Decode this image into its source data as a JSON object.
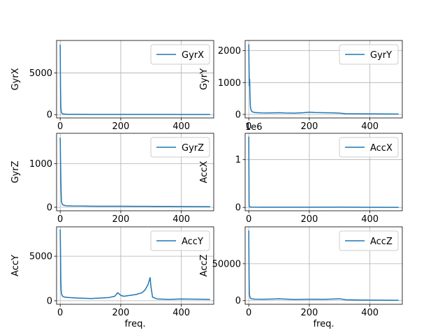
{
  "chart_data": [
    {
      "type": "line",
      "ylabel": "GyrX",
      "xlabel": "",
      "xlim": [
        -12,
        507
      ],
      "ylim": [
        -400,
        8900
      ],
      "xticks": [
        "0",
        "200",
        "400"
      ],
      "xtick_values": [
        0,
        200,
        400
      ],
      "yticks": [
        "0",
        "5000"
      ],
      "ytick_values": [
        0,
        5000
      ],
      "offset_text": "",
      "legend": "upper-right",
      "grid": true,
      "color": "#1f77b4",
      "series": [
        {
          "name": "GyrX",
          "points": [
            [
              0,
              8400
            ],
            [
              1,
              3200
            ],
            [
              2,
              1000
            ],
            [
              3,
              500
            ],
            [
              4,
              250
            ],
            [
              6,
              150
            ],
            [
              10,
              80
            ],
            [
              20,
              50
            ],
            [
              40,
              40
            ],
            [
              80,
              35
            ],
            [
              120,
              30
            ],
            [
              160,
              28
            ],
            [
              200,
              30
            ],
            [
              240,
              28
            ],
            [
              280,
              30
            ],
            [
              320,
              26
            ],
            [
              360,
              25
            ],
            [
              400,
              22
            ],
            [
              440,
              20
            ],
            [
              470,
              20
            ],
            [
              495,
              18
            ]
          ]
        }
      ]
    },
    {
      "type": "line",
      "ylabel": "GyrY",
      "xlabel": "",
      "xlim": [
        -12,
        507
      ],
      "ylim": [
        -110,
        2320
      ],
      "xticks": [
        "0",
        "200",
        "400"
      ],
      "xtick_values": [
        0,
        200,
        400
      ],
      "yticks": [
        "0",
        "1000",
        "2000"
      ],
      "ytick_values": [
        0,
        1000,
        2000
      ],
      "offset_text": "",
      "legend": "upper-right",
      "grid": true,
      "color": "#1f77b4",
      "series": [
        {
          "name": "GyrY",
          "points": [
            [
              0,
              2200
            ],
            [
              1,
              1400
            ],
            [
              2,
              900
            ],
            [
              3,
              1100
            ],
            [
              4,
              600
            ],
            [
              5,
              300
            ],
            [
              6,
              200
            ],
            [
              8,
              120
            ],
            [
              12,
              80
            ],
            [
              20,
              60
            ],
            [
              40,
              50
            ],
            [
              60,
              45
            ],
            [
              80,
              50
            ],
            [
              100,
              55
            ],
            [
              120,
              45
            ],
            [
              150,
              40
            ],
            [
              180,
              55
            ],
            [
              200,
              70
            ],
            [
              220,
              60
            ],
            [
              250,
              55
            ],
            [
              280,
              50
            ],
            [
              300,
              40
            ],
            [
              320,
              25
            ],
            [
              360,
              20
            ],
            [
              400,
              18
            ],
            [
              440,
              15
            ],
            [
              495,
              12
            ]
          ]
        }
      ]
    },
    {
      "type": "line",
      "ylabel": "GyrZ",
      "xlabel": "",
      "xlim": [
        -12,
        507
      ],
      "ylim": [
        -80,
        1700
      ],
      "xticks": [
        "0",
        "200",
        "400"
      ],
      "xtick_values": [
        0,
        200,
        400
      ],
      "yticks": [
        "0",
        "1000"
      ],
      "ytick_values": [
        0,
        1000
      ],
      "offset_text": "",
      "legend": "upper-right",
      "grid": true,
      "color": "#1f77b4",
      "series": [
        {
          "name": "GyrZ",
          "points": [
            [
              0,
              1600
            ],
            [
              1,
              1100
            ],
            [
              2,
              700
            ],
            [
              3,
              350
            ],
            [
              4,
              150
            ],
            [
              6,
              80
            ],
            [
              10,
              50
            ],
            [
              20,
              35
            ],
            [
              40,
              30
            ],
            [
              80,
              28
            ],
            [
              120,
              25
            ],
            [
              160,
              25
            ],
            [
              200,
              25
            ],
            [
              240,
              22
            ],
            [
              280,
              22
            ],
            [
              320,
              20
            ],
            [
              360,
              20
            ],
            [
              400,
              18
            ],
            [
              440,
              16
            ],
            [
              495,
              15
            ]
          ]
        }
      ]
    },
    {
      "type": "line",
      "ylabel": "AccX",
      "xlabel": "",
      "xlim": [
        -12,
        507
      ],
      "ylim": [
        -0.07,
        1.55
      ],
      "xticks": [
        "0",
        "200",
        "400"
      ],
      "xtick_values": [
        0,
        200,
        400
      ],
      "yticks": [
        "0",
        "1"
      ],
      "ytick_values": [
        0,
        1
      ],
      "offset_text": "1e6",
      "legend": "upper-right",
      "grid": true,
      "color": "#1f77b4",
      "series": [
        {
          "name": "AccX",
          "points": [
            [
              0,
              1.48
            ],
            [
              1,
              0.05
            ],
            [
              2,
              0.02
            ],
            [
              4,
              0.01
            ],
            [
              10,
              0.006
            ],
            [
              40,
              0.005
            ],
            [
              100,
              0.005
            ],
            [
              200,
              0.005
            ],
            [
              300,
              0.006
            ],
            [
              400,
              0.003
            ],
            [
              495,
              0.002
            ]
          ]
        }
      ]
    },
    {
      "type": "line",
      "ylabel": "AccY",
      "xlabel": "freq.",
      "xlim": [
        -12,
        507
      ],
      "ylim": [
        -400,
        8300
      ],
      "xticks": [
        "0",
        "200",
        "400"
      ],
      "xtick_values": [
        0,
        200,
        400
      ],
      "yticks": [
        "0",
        "5000"
      ],
      "ytick_values": [
        0,
        5000
      ],
      "offset_text": "",
      "legend": "upper-right",
      "grid": true,
      "color": "#1f77b4",
      "series": [
        {
          "name": "AccY",
          "points": [
            [
              0,
              8000
            ],
            [
              1,
              5500
            ],
            [
              2,
              2500
            ],
            [
              3,
              1200
            ],
            [
              5,
              700
            ],
            [
              8,
              500
            ],
            [
              15,
              400
            ],
            [
              30,
              350
            ],
            [
              60,
              300
            ],
            [
              100,
              250
            ],
            [
              130,
              300
            ],
            [
              160,
              350
            ],
            [
              180,
              500
            ],
            [
              190,
              900
            ],
            [
              200,
              600
            ],
            [
              210,
              500
            ],
            [
              230,
              600
            ],
            [
              250,
              700
            ],
            [
              270,
              900
            ],
            [
              280,
              1200
            ],
            [
              290,
              1800
            ],
            [
              297,
              2600
            ],
            [
              300,
              1500
            ],
            [
              305,
              400
            ],
            [
              320,
              200
            ],
            [
              360,
              150
            ],
            [
              400,
              200
            ],
            [
              440,
              180
            ],
            [
              470,
              170
            ],
            [
              495,
              150
            ]
          ]
        }
      ]
    },
    {
      "type": "line",
      "ylabel": "AccZ",
      "xlabel": "freq.",
      "xlim": [
        -12,
        507
      ],
      "ylim": [
        -5000,
        100000
      ],
      "xticks": [
        "0",
        "200",
        "400"
      ],
      "xtick_values": [
        0,
        200,
        400
      ],
      "yticks": [
        "0",
        "50000"
      ],
      "ytick_values": [
        0,
        50000
      ],
      "offset_text": "",
      "legend": "upper-right",
      "grid": true,
      "color": "#1f77b4",
      "series": [
        {
          "name": "AccZ",
          "points": [
            [
              0,
              95000
            ],
            [
              1,
              30000
            ],
            [
              2,
              9000
            ],
            [
              4,
              4000
            ],
            [
              8,
              2500
            ],
            [
              20,
              2000
            ],
            [
              50,
              1800
            ],
            [
              100,
              2500
            ],
            [
              150,
              1500
            ],
            [
              200,
              1800
            ],
            [
              250,
              1700
            ],
            [
              300,
              2500
            ],
            [
              320,
              1200
            ],
            [
              360,
              800
            ],
            [
              400,
              700
            ],
            [
              440,
              600
            ],
            [
              495,
              500
            ]
          ]
        }
      ]
    }
  ]
}
